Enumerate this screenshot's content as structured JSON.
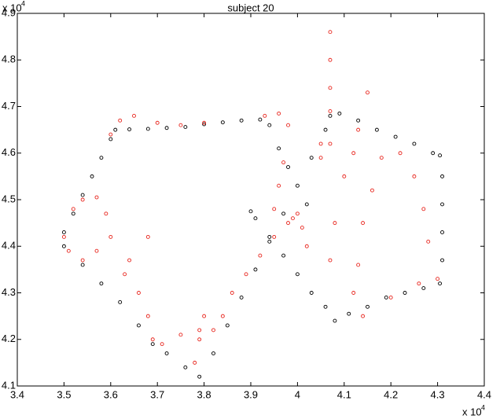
{
  "chart_data": {
    "type": "scatter",
    "title": "subject 20",
    "x_multiplier": {
      "base": "x 10",
      "exponent": "4"
    },
    "y_multiplier": {
      "base": "x 10",
      "exponent": "4"
    },
    "xlim": [
      3.4,
      4.4
    ],
    "xticks": [
      3.4,
      3.5,
      3.6,
      3.7,
      3.8,
      3.9,
      4,
      4.1,
      4.2,
      4.3,
      4.4
    ],
    "ylim": [
      4.1,
      4.9
    ],
    "yticks": [
      4.1,
      4.2,
      4.3,
      4.4,
      4.5,
      4.6,
      4.7,
      4.8,
      4.9
    ],
    "grid": false,
    "series": [
      {
        "color": "#000000",
        "x": [
          3.5,
          3.52,
          3.54,
          3.56,
          3.58,
          3.6,
          3.61,
          3.64,
          3.68,
          3.72,
          3.76,
          3.8,
          3.84,
          3.88,
          3.92,
          3.94,
          3.96,
          3.98,
          4.0,
          4.02,
          3.5,
          3.54,
          3.58,
          3.62,
          3.66,
          3.69,
          3.72,
          3.76,
          3.79,
          3.82,
          3.85,
          3.88,
          3.91,
          3.94,
          3.97,
          4.03,
          4.06,
          4.07,
          4.09,
          4.13,
          4.17,
          4.21,
          4.25,
          4.29,
          4.305,
          4.31,
          4.31,
          4.31,
          4.31,
          4.305,
          4.27,
          4.23,
          4.19,
          4.15,
          4.11,
          4.08,
          4.06,
          4.03,
          4.0,
          3.97,
          3.94,
          3.91,
          3.9
        ],
        "values": [
          4.43,
          4.47,
          4.51,
          4.55,
          4.59,
          4.63,
          4.65,
          4.651,
          4.652,
          4.654,
          4.656,
          4.662,
          4.666,
          4.67,
          4.672,
          4.66,
          4.61,
          4.57,
          4.53,
          4.49,
          4.4,
          4.36,
          4.32,
          4.28,
          4.23,
          4.19,
          4.17,
          4.14,
          4.12,
          4.17,
          4.23,
          4.29,
          4.35,
          4.41,
          4.47,
          4.59,
          4.65,
          4.68,
          4.685,
          4.67,
          4.65,
          4.635,
          4.62,
          4.6,
          4.595,
          4.55,
          4.49,
          4.43,
          4.37,
          4.32,
          4.31,
          4.3,
          4.29,
          4.27,
          4.255,
          4.24,
          4.27,
          4.3,
          4.34,
          4.38,
          4.42,
          4.46,
          4.475
        ]
      },
      {
        "color": "#e8261e",
        "x": [
          3.52,
          3.54,
          3.57,
          3.59,
          3.6,
          3.57,
          3.54,
          3.51,
          3.5,
          3.6,
          3.62,
          3.65,
          3.7,
          3.75,
          3.8,
          3.68,
          3.64,
          3.63,
          3.66,
          3.68,
          3.69,
          3.71,
          3.75,
          3.79,
          3.82,
          3.84,
          3.78,
          3.79,
          3.8,
          3.86,
          3.89,
          3.92,
          3.95,
          3.98,
          4.0,
          3.93,
          3.96,
          3.98,
          3.97,
          3.96,
          3.95,
          4.07,
          4.07,
          4.07,
          4.07,
          4.05,
          4.05,
          4.07,
          4.12,
          4.18,
          4.16,
          4.14,
          4.13,
          4.12,
          4.15,
          4.13,
          4.1,
          4.08,
          4.07,
          4.22,
          4.25,
          4.27,
          4.28,
          4.3,
          4.26,
          4.2,
          4.14,
          4.02,
          4.01,
          3.99
        ],
        "values": [
          4.48,
          4.5,
          4.505,
          4.47,
          4.42,
          4.39,
          4.37,
          4.39,
          4.42,
          4.64,
          4.67,
          4.68,
          4.665,
          4.66,
          4.665,
          4.42,
          4.37,
          4.34,
          4.3,
          4.25,
          4.2,
          4.19,
          4.21,
          4.22,
          4.22,
          4.25,
          4.15,
          4.2,
          4.25,
          4.3,
          4.34,
          4.38,
          4.42,
          4.45,
          4.47,
          4.68,
          4.685,
          4.66,
          4.58,
          4.53,
          4.48,
          4.86,
          4.8,
          4.74,
          4.69,
          4.62,
          4.59,
          4.62,
          4.6,
          4.59,
          4.52,
          4.45,
          4.36,
          4.3,
          4.73,
          4.65,
          4.55,
          4.45,
          4.37,
          4.6,
          4.55,
          4.48,
          4.41,
          4.33,
          4.32,
          4.29,
          4.25,
          4.4,
          4.44,
          4.46
        ]
      }
    ]
  }
}
